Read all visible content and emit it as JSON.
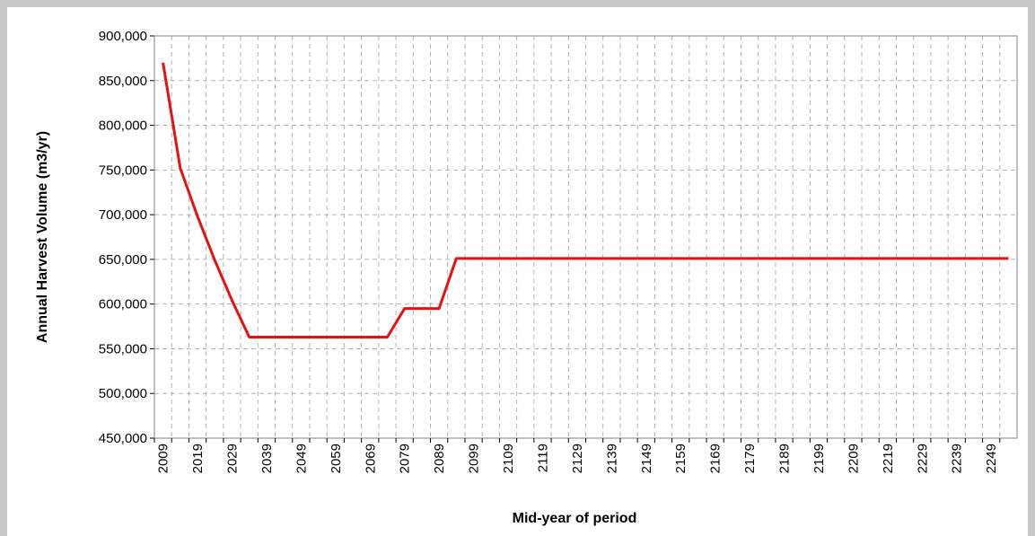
{
  "chart_data": {
    "type": "line",
    "ylabel": "Annual Harvest Volume (m3/yr)",
    "xlabel": "Mid-year of period",
    "categories": [
      "2009",
      null,
      "2019",
      null,
      "2029",
      null,
      "2039",
      null,
      "2049",
      null,
      "2059",
      null,
      "2069",
      null,
      "2079",
      null,
      "2089",
      null,
      "2099",
      null,
      "2109",
      null,
      "2119",
      null,
      "2129",
      null,
      "2139",
      null,
      "2149",
      null,
      "2159",
      null,
      "2169",
      null,
      "2179",
      null,
      "2189",
      null,
      "2199",
      null,
      "2209",
      null,
      "2219",
      null,
      "2229",
      null,
      "2239",
      null,
      "2249",
      null
    ],
    "values": [
      870000,
      752000,
      698000,
      649000,
      604000,
      563000,
      563000,
      563000,
      563000,
      563000,
      563000,
      563000,
      563000,
      563000,
      595000,
      595000,
      595000,
      651000,
      651000,
      651000,
      651000,
      651000,
      651000,
      651000,
      651000,
      651000,
      651000,
      651000,
      651000,
      651000,
      651000,
      651000,
      651000,
      651000,
      651000,
      651000,
      651000,
      651000,
      651000,
      651000,
      651000,
      651000,
      651000,
      651000,
      651000,
      651000,
      651000,
      651000,
      651000,
      651000
    ],
    "color": "#e81010",
    "ylim": [
      450000,
      900000
    ],
    "yticks": [
      {
        "value": 450000,
        "label": "450,000"
      },
      {
        "value": 500000,
        "label": "500,000"
      },
      {
        "value": 550000,
        "label": "550,000"
      },
      {
        "value": 600000,
        "label": "600,000"
      },
      {
        "value": 650000,
        "label": "650,000"
      },
      {
        "value": 700000,
        "label": "700,000"
      },
      {
        "value": 750000,
        "label": "750,000"
      },
      {
        "value": 800000,
        "label": "800,000"
      },
      {
        "value": 850000,
        "label": "850,000"
      },
      {
        "value": 900000,
        "label": "900,000"
      }
    ],
    "grid": true
  }
}
